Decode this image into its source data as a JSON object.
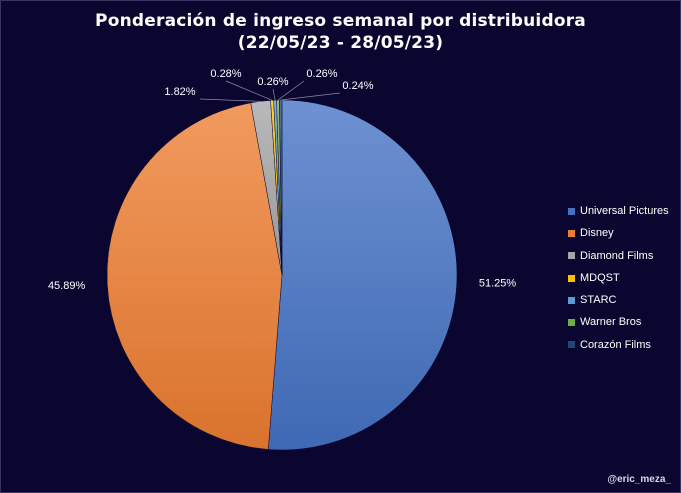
{
  "title_line1": "Ponderación de ingreso semanal por distribuidora",
  "title_line2": "(22/05/23 - 28/05/23)",
  "watermark": "@eric_meza_",
  "chart_data": {
    "type": "pie",
    "title": "Ponderación de ingreso semanal por distribuidora (22/05/23 - 28/05/23)",
    "legend_position": "right",
    "slices": [
      {
        "name": "Universal Pictures",
        "value": 51.25,
        "label": "51.25%",
        "color": "#4472c4"
      },
      {
        "name": "Disney",
        "value": 45.89,
        "label": "45.89%",
        "color": "#ed7d31"
      },
      {
        "name": "Diamond Films",
        "value": 1.82,
        "label": "1.82%",
        "color": "#a5a5a5"
      },
      {
        "name": "MDQST",
        "value": 0.28,
        "label": "0.28%",
        "color": "#ffc000"
      },
      {
        "name": "STARC",
        "value": 0.26,
        "label": "0.26%",
        "color": "#5b9bd5"
      },
      {
        "name": "Warner Bros",
        "value": 0.26,
        "label": "0.26%",
        "color": "#70ad47"
      },
      {
        "name": "Corazón Films",
        "value": 0.24,
        "label": "0.24%",
        "color": "#264478"
      }
    ]
  }
}
